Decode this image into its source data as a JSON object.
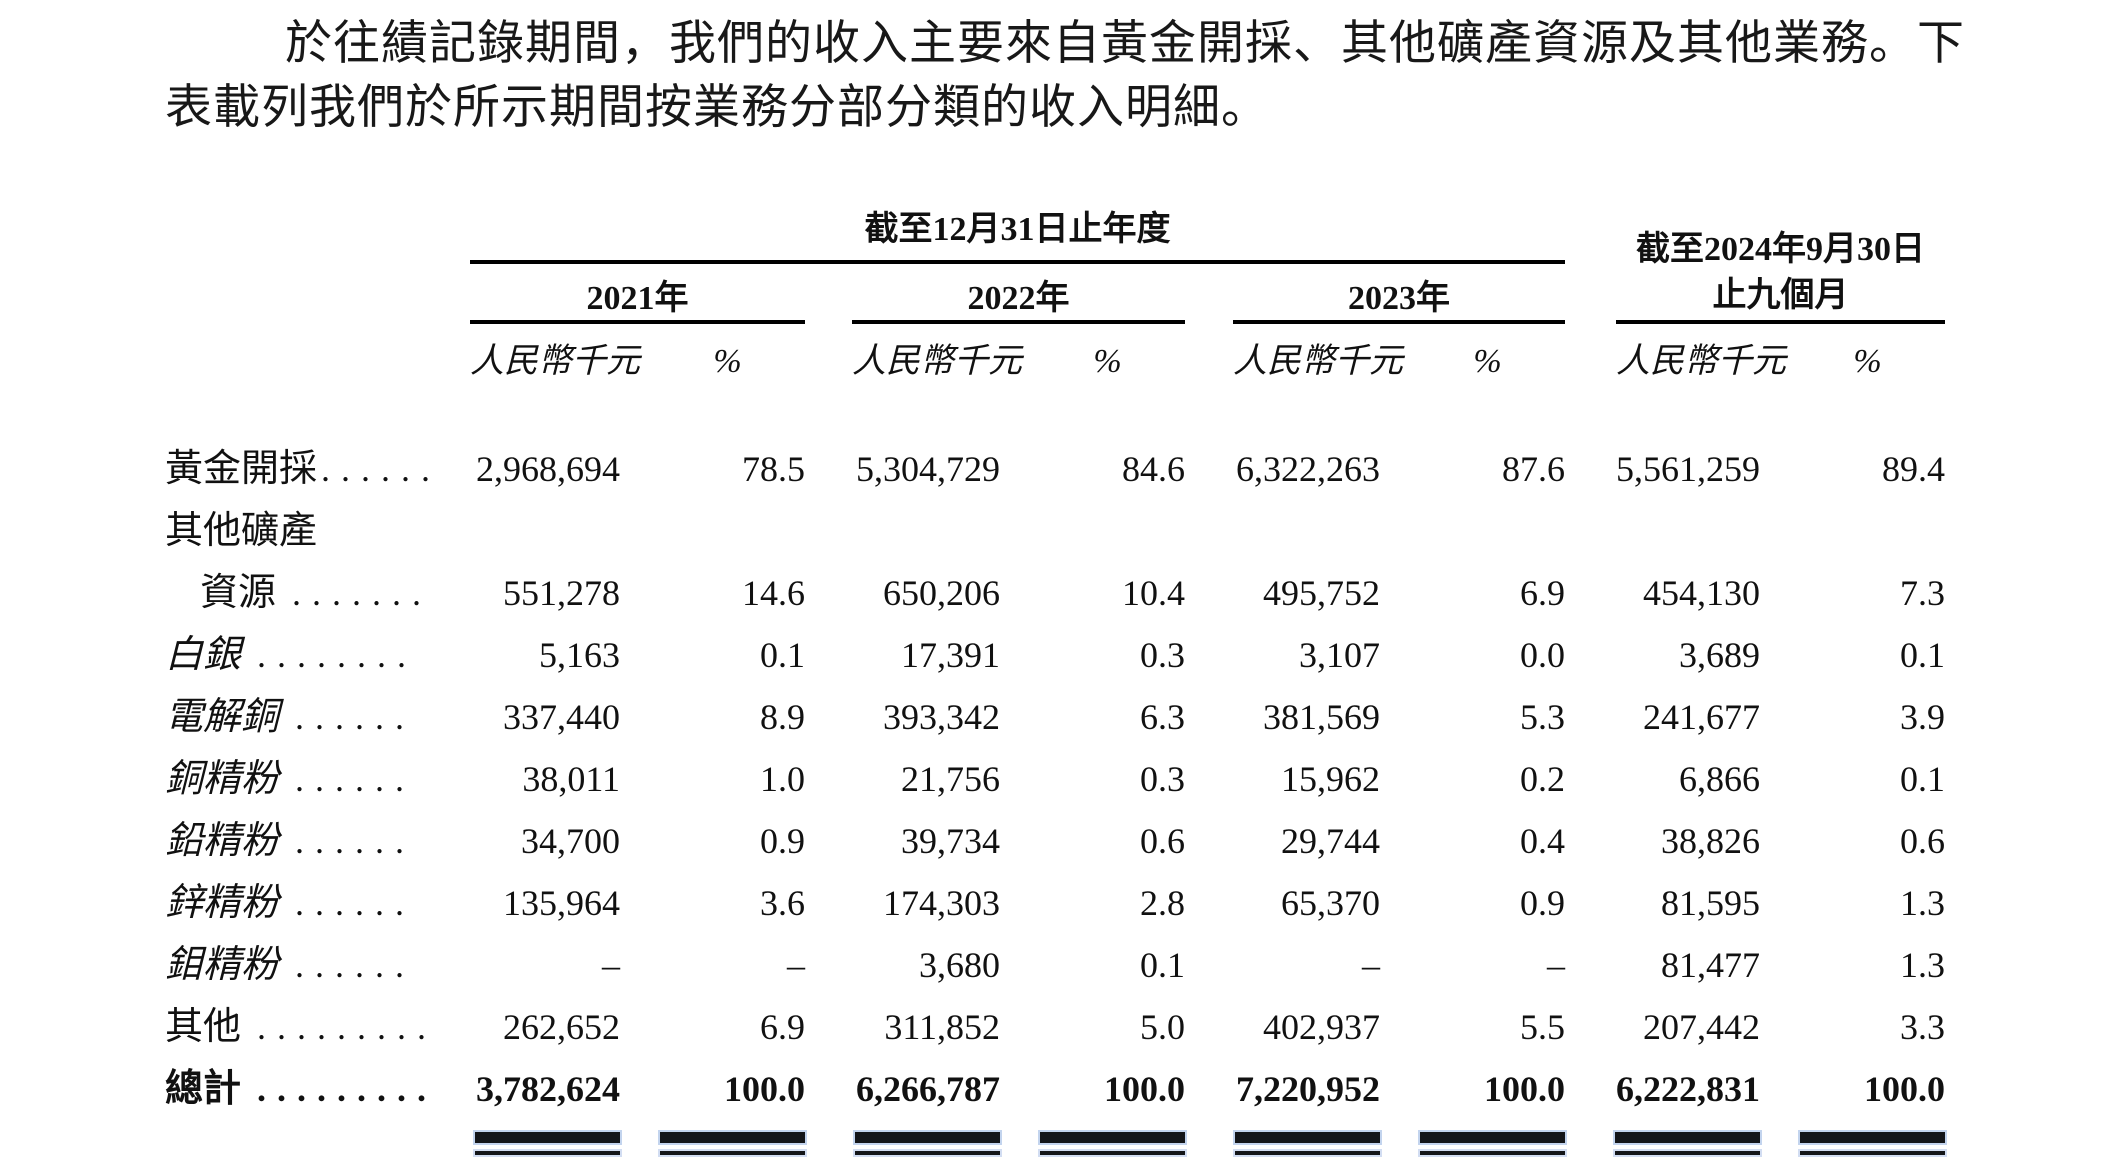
{
  "paragraph": {
    "line1": "於往績記錄期間，我們的收入主要來自黃金開採、其他礦產資源及其他業務。下",
    "line2": "表載列我們於所示期間按業務分部分類的收入明細。"
  },
  "table": {
    "annual_header": "截至12月31日止年度",
    "nine_month_header_line1": "截至2024年9月30日",
    "nine_month_header_line2": "止九個月",
    "years": [
      "2021年",
      "2022年",
      "2023年"
    ],
    "unit_label": "人民幣千元",
    "percent_label": "%",
    "rows": [
      {
        "label": "黃金開採",
        "dots": "......",
        "style": "regular",
        "values": [
          "2,968,694",
          "78.5",
          "5,304,729",
          "84.6",
          "6,322,263",
          "87.6",
          "5,561,259",
          "89.4"
        ]
      },
      {
        "label": "其他礦產",
        "dots": "",
        "style": "regular",
        "values": []
      },
      {
        "label": "資源",
        "dots": ".......",
        "style": "regular-indented",
        "values": [
          "551,278",
          "14.6",
          "650,206",
          "10.4",
          "495,752",
          "6.9",
          "454,130",
          "7.3"
        ]
      },
      {
        "label": "白銀",
        "dots": "........",
        "style": "italic",
        "values": [
          "5,163",
          "0.1",
          "17,391",
          "0.3",
          "3,107",
          "0.0",
          "3,689",
          "0.1"
        ]
      },
      {
        "label": "電解銅",
        "dots": "......",
        "style": "italic",
        "values": [
          "337,440",
          "8.9",
          "393,342",
          "6.3",
          "381,569",
          "5.3",
          "241,677",
          "3.9"
        ]
      },
      {
        "label": "銅精粉",
        "dots": "......",
        "style": "italic",
        "values": [
          "38,011",
          "1.0",
          "21,756",
          "0.3",
          "15,962",
          "0.2",
          "6,866",
          "0.1"
        ]
      },
      {
        "label": "鉛精粉",
        "dots": "......",
        "style": "italic",
        "values": [
          "34,700",
          "0.9",
          "39,734",
          "0.6",
          "29,744",
          "0.4",
          "38,826",
          "0.6"
        ]
      },
      {
        "label": "鋅精粉",
        "dots": "......",
        "style": "italic",
        "values": [
          "135,964",
          "3.6",
          "174,303",
          "2.8",
          "65,370",
          "0.9",
          "81,595",
          "1.3"
        ]
      },
      {
        "label": "鉬精粉",
        "dots": "......",
        "style": "italic",
        "values": [
          "–",
          "–",
          "3,680",
          "0.1",
          "–",
          "–",
          "81,477",
          "1.3"
        ]
      },
      {
        "label": "其他",
        "dots": ".........",
        "style": "regular",
        "values": [
          "262,652",
          "6.9",
          "311,852",
          "5.0",
          "402,937",
          "5.5",
          "207,442",
          "3.3"
        ]
      },
      {
        "label": "總計",
        "dots": ".........",
        "style": "total-bold",
        "values": [
          "3,782,624",
          "100.0",
          "6,266,787",
          "100.0",
          "7,220,952",
          "100.0",
          "6,222,831",
          "100.0"
        ]
      }
    ]
  }
}
